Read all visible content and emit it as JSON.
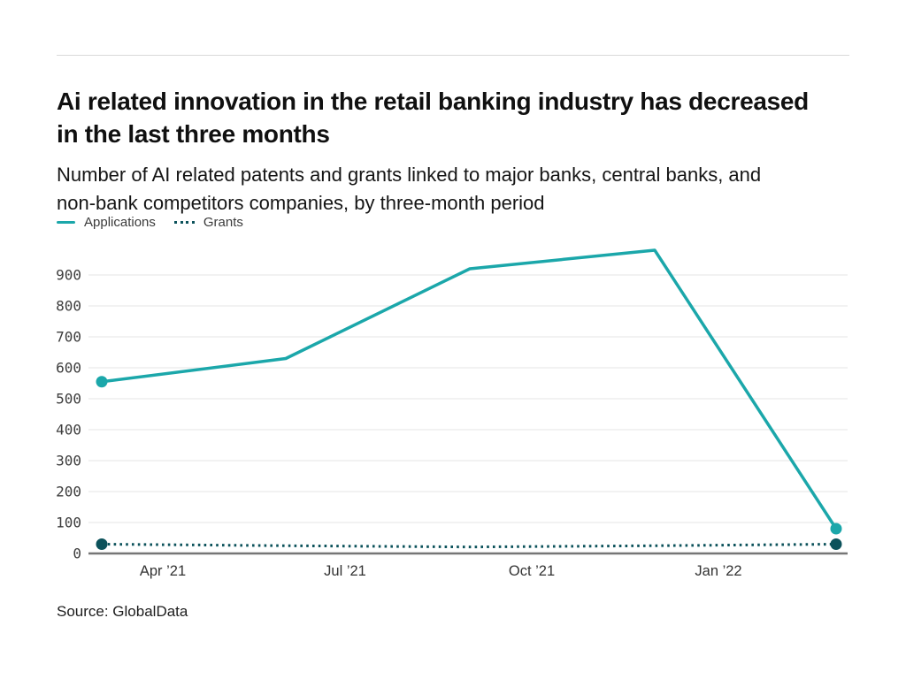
{
  "header": {
    "title": "Ai related innovation in the retail banking industry has decreased in the last three months",
    "subtitle": "Number of AI related patents and grants linked to major banks, central banks, and non-bank competitors companies, by three-month period"
  },
  "legend": {
    "items": [
      {
        "label": "Applications",
        "style": "solid",
        "color": "#1ba7aa"
      },
      {
        "label": "Grants",
        "style": "dotted",
        "color": "#0c525b"
      }
    ]
  },
  "chart_data": {
    "type": "line",
    "title": "Ai related innovation in the retail banking industry has decreased in the last three months",
    "xlabel": "",
    "ylabel": "",
    "x_tick_labels": [
      "Apr ’21",
      "Jul ’21",
      "Oct ’21",
      "Jan ’22"
    ],
    "y_ticks": [
      0,
      100,
      200,
      300,
      400,
      500,
      600,
      700,
      800,
      900
    ],
    "ylim": [
      0,
      1000
    ],
    "grid": "horizontal",
    "legend_position": "top-left",
    "points_per_series": 5,
    "series": [
      {
        "name": "Applications",
        "style": "solid",
        "color": "#1ba7aa",
        "values": [
          555,
          630,
          920,
          980,
          80
        ]
      },
      {
        "name": "Grants",
        "style": "dotted",
        "color": "#0c525b",
        "values": [
          30,
          25,
          21,
          25,
          30
        ]
      }
    ]
  },
  "footer": {
    "source": "Source: GlobalData"
  },
  "colors": {
    "grid": "#e9e9e9",
    "axis": "#767676",
    "tick_text": "#3d3d3d",
    "x_tick_text": "#333333",
    "rule": "#d9d9d9"
  }
}
